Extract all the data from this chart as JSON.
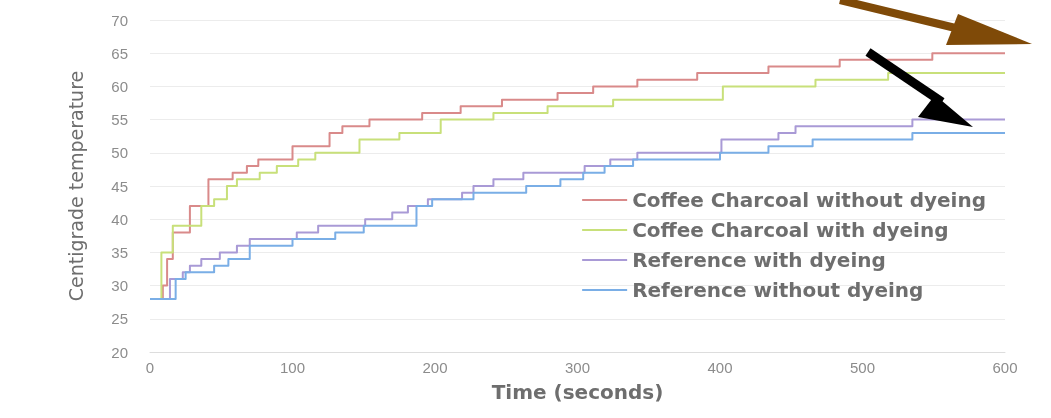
{
  "chart_data": {
    "type": "step",
    "xlabel": "Time (seconds)",
    "ylabel": "Centigrade temperature",
    "xlim": [
      0,
      600
    ],
    "xticks": [
      0,
      100,
      200,
      300,
      400,
      500,
      600
    ],
    "ylim": [
      20,
      70
    ],
    "yticks": [
      20,
      25,
      30,
      35,
      40,
      45,
      50,
      55,
      60,
      65,
      70
    ],
    "grid": "y",
    "legend": "right",
    "marker": "none",
    "line_style": "solid",
    "series": [
      {
        "name": "Coffee Charcoal without dyeing",
        "color": "#d98a8a",
        "x": [
          0,
          9,
          12,
          16,
          28,
          41,
          58,
          68,
          76,
          100,
          126,
          135,
          154,
          191,
          218,
          247,
          286,
          311,
          342,
          384,
          434,
          484,
          549,
          600
        ],
        "values": [
          28,
          30,
          34,
          38,
          42,
          46,
          47,
          48,
          49,
          51,
          53,
          54,
          55,
          56,
          57,
          58,
          59,
          60,
          61,
          62,
          63,
          64,
          65,
          65
        ]
      },
      {
        "name": "Coffee Charcoal with dyeing",
        "color": "#c8e07a",
        "x": [
          0,
          8,
          16,
          36,
          45,
          54,
          61,
          77,
          89,
          104,
          116,
          147,
          175,
          204,
          241,
          279,
          325,
          402,
          467,
          518,
          600
        ],
        "values": [
          28,
          35,
          39,
          42,
          43,
          45,
          46,
          47,
          48,
          49,
          50,
          52,
          53,
          55,
          56,
          57,
          58,
          60,
          61,
          62,
          62
        ]
      },
      {
        "name": "Reference with dyeing",
        "color": "#a99ad6",
        "x": [
          0,
          14,
          23,
          28,
          36,
          49,
          61,
          70,
          103,
          118,
          151,
          170,
          181,
          195,
          219,
          227,
          241,
          262,
          305,
          323,
          342,
          401,
          441,
          453,
          535,
          600
        ],
        "values": [
          28,
          31,
          32,
          33,
          34,
          35,
          36,
          37,
          38,
          39,
          40,
          41,
          42,
          43,
          44,
          45,
          46,
          47,
          48,
          49,
          50,
          52,
          53,
          54,
          55,
          55
        ]
      },
      {
        "name": "Reference without dyeing",
        "color": "#7aaee6",
        "x": [
          0,
          18,
          25,
          45,
          55,
          70,
          100,
          130,
          150,
          187,
          198,
          227,
          264,
          288,
          304,
          319,
          339,
          400,
          434,
          465,
          535,
          600
        ],
        "values": [
          28,
          31,
          32,
          33,
          34,
          36,
          37,
          38,
          39,
          42,
          43,
          44,
          45,
          46,
          47,
          48,
          49,
          50,
          51,
          52,
          53,
          53
        ]
      }
    ]
  }
}
